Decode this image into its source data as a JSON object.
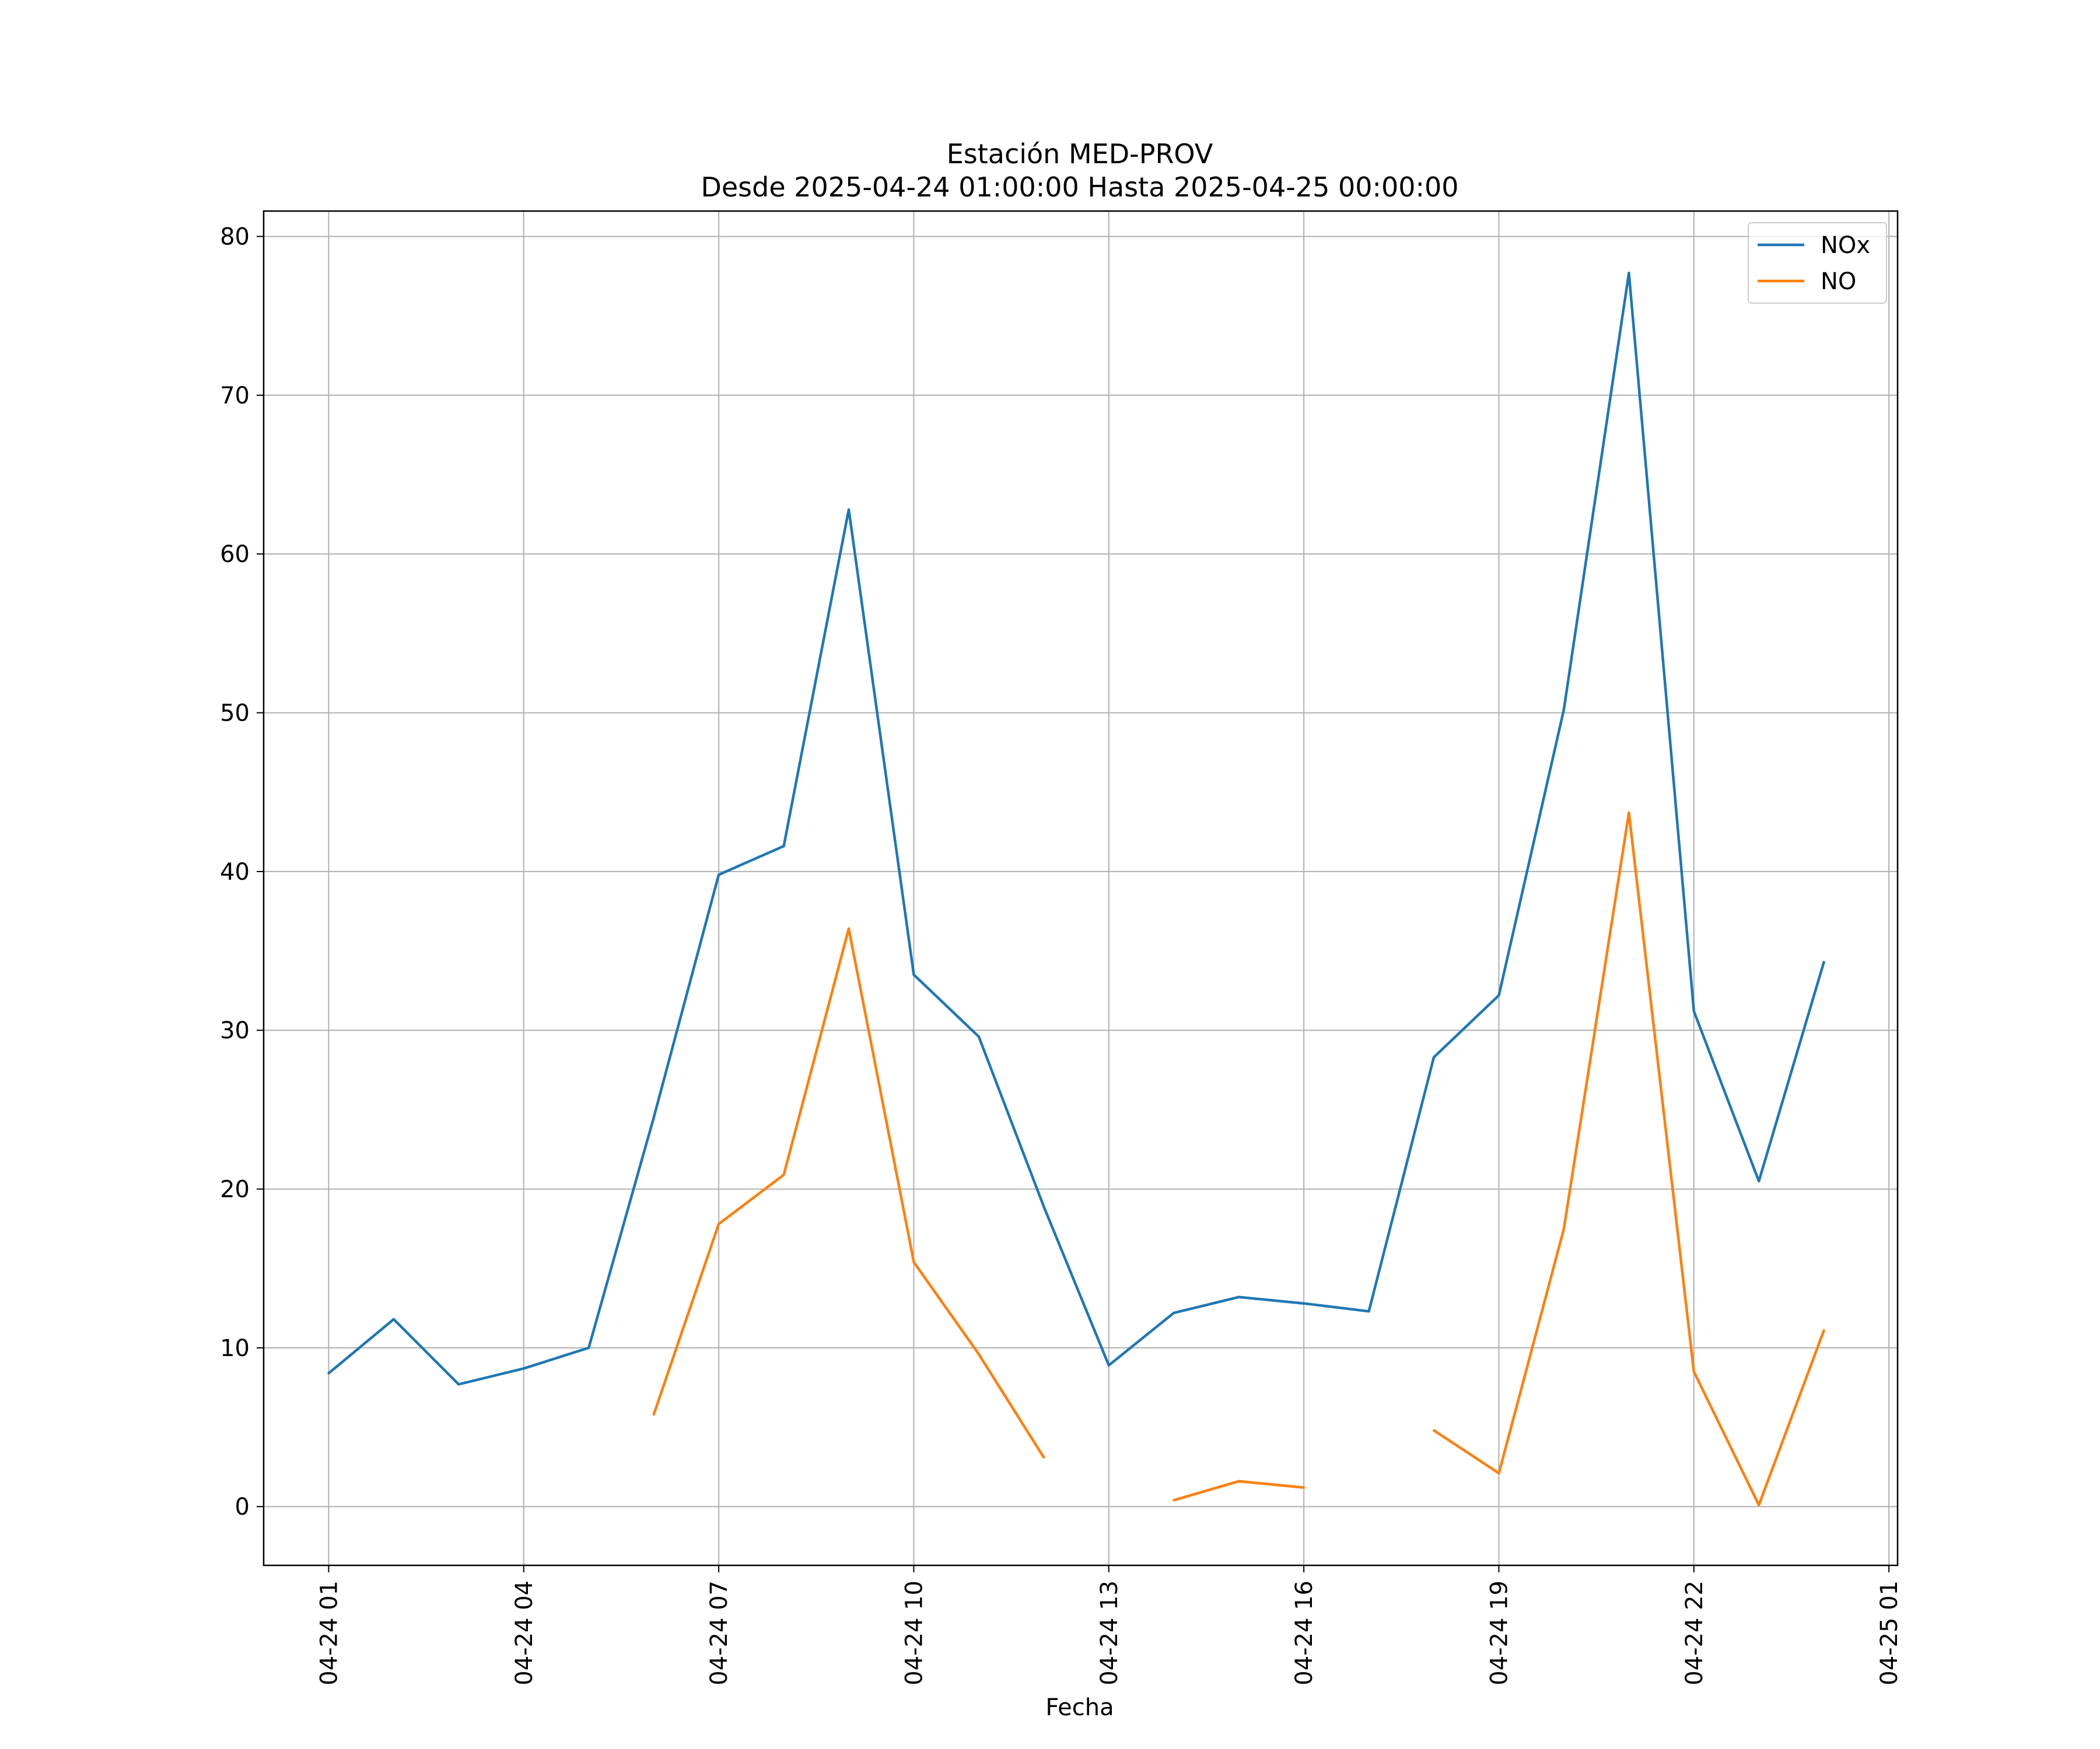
{
  "chart_data": {
    "type": "line",
    "title": "Estación MED-PROV",
    "subtitle": "Desde 2025-04-24 01:00:00 Hasta 2025-04-25 00:00:00",
    "xlabel": "Fecha",
    "ylabel": "",
    "x_ticks": [
      "04-24 01",
      "04-24 04",
      "04-24 07",
      "04-24 10",
      "04-24 13",
      "04-24 16",
      "04-24 19",
      "04-24 22",
      "04-25 01"
    ],
    "x": [
      "2025-04-24 01:00",
      "2025-04-24 02:00",
      "2025-04-24 03:00",
      "2025-04-24 04:00",
      "2025-04-24 05:00",
      "2025-04-24 06:00",
      "2025-04-24 07:00",
      "2025-04-24 08:00",
      "2025-04-24 09:00",
      "2025-04-24 10:00",
      "2025-04-24 11:00",
      "2025-04-24 12:00",
      "2025-04-24 13:00",
      "2025-04-24 14:00",
      "2025-04-24 15:00",
      "2025-04-24 16:00",
      "2025-04-24 17:00",
      "2025-04-24 18:00",
      "2025-04-24 19:00",
      "2025-04-24 20:00",
      "2025-04-24 21:00",
      "2025-04-24 22:00",
      "2025-04-24 23:00",
      "2025-04-25 00:00"
    ],
    "xlim": [
      "2025-04-24 00:00",
      "2025-04-25 01:08"
    ],
    "ylim": [
      -3.7,
      81.6
    ],
    "y_ticks": [
      0,
      10,
      20,
      30,
      40,
      50,
      60,
      70,
      80
    ],
    "grid": true,
    "legend_position": "upper right",
    "series": [
      {
        "name": "NOx",
        "color": "#1f77b4",
        "values": [
          8.4,
          11.8,
          7.7,
          8.7,
          10.0,
          24.5,
          39.8,
          41.6,
          62.8,
          33.5,
          29.6,
          18.9,
          8.9,
          12.2,
          13.2,
          12.8,
          12.3,
          28.3,
          32.2,
          50.2,
          77.7,
          31.2,
          20.5,
          34.3
        ]
      },
      {
        "name": "NO",
        "color": "#ff7f0e",
        "values": [
          null,
          null,
          null,
          null,
          null,
          5.8,
          17.8,
          20.9,
          36.4,
          15.4,
          9.6,
          3.1,
          null,
          0.4,
          1.6,
          1.2,
          null,
          4.8,
          2.1,
          17.5,
          43.7,
          8.5,
          0.1,
          11.1
        ]
      }
    ]
  }
}
